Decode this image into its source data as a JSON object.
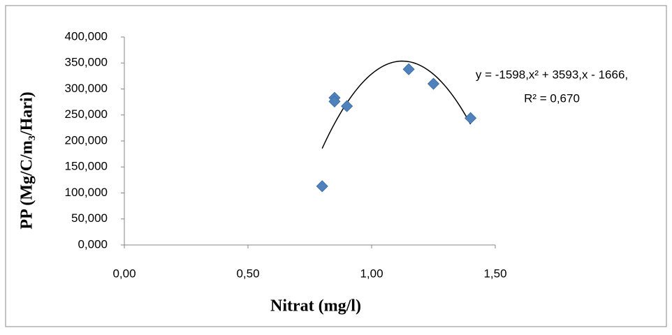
{
  "chart_data": {
    "type": "scatter",
    "x_label": "Nitrat (mg/l)",
    "y_label": "PP (Mg/C/m₃/Hari)",
    "series": [
      {
        "name": "PP",
        "color": "#4f81bd",
        "x": [
          0.8,
          0.85,
          0.85,
          0.9,
          1.15,
          1.25,
          1.4
        ],
        "values": [
          113,
          283,
          276,
          267,
          338,
          310,
          244
        ]
      }
    ],
    "trendline": {
      "type": "polynomial",
      "coefficients": [
        -1598,
        3593,
        -1666
      ],
      "x": [
        0.8,
        1.4
      ]
    },
    "annotations": [
      "y = -1598,x² + 3593,x - 1666,",
      "R² = 0,670"
    ],
    "xlim": [
      0,
      1.5
    ],
    "ylim": [
      0,
      400
    ],
    "xticks": [
      {
        "value": 0,
        "label": "0,00"
      },
      {
        "value": 0.5,
        "label": "0,50"
      },
      {
        "value": 1,
        "label": "1,00"
      },
      {
        "value": 1.5,
        "label": "1,50"
      }
    ],
    "yticks": [
      {
        "value": 0,
        "label": "0,000"
      },
      {
        "value": 50,
        "label": "50,000"
      },
      {
        "value": 100,
        "label": "100,000"
      },
      {
        "value": 150,
        "label": "150,000"
      },
      {
        "value": 200,
        "label": "200,000"
      },
      {
        "value": 250,
        "label": "250,000"
      },
      {
        "value": 300,
        "label": "300,000"
      },
      {
        "value": 350,
        "label": "350,000"
      },
      {
        "value": 400,
        "label": "400,000"
      }
    ],
    "grid": false
  }
}
